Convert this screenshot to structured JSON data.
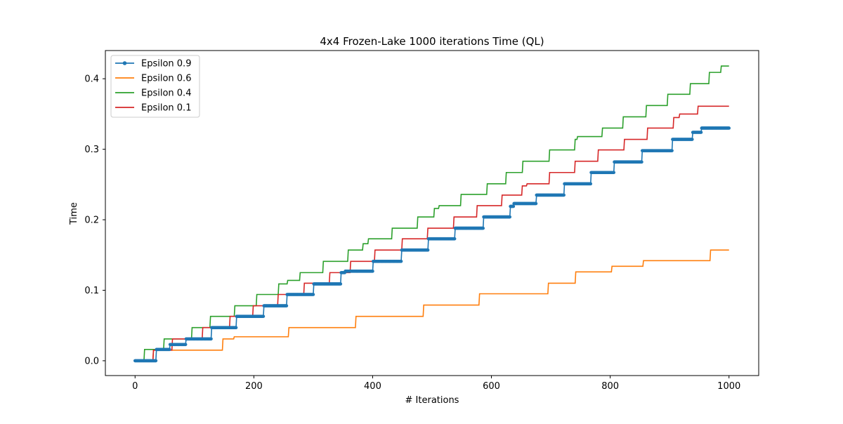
{
  "chart_data": {
    "type": "line",
    "title": "4x4 Frozen-Lake 1000 iterations  Time (QL)",
    "xlabel": "# Iterations",
    "ylabel": "Time",
    "xlim": [
      -50,
      1050
    ],
    "ylim": [
      -0.021,
      0.44
    ],
    "xticks": [
      0,
      200,
      400,
      600,
      800,
      1000
    ],
    "xtick_labels": [
      "0",
      "200",
      "400",
      "600",
      "800",
      "1000"
    ],
    "yticks": [
      0.0,
      0.1,
      0.2,
      0.3,
      0.4
    ],
    "ytick_labels": [
      "0.0",
      "0.1",
      "0.2",
      "0.3",
      "0.4"
    ],
    "grid": false,
    "legend_position": "top-left",
    "series": [
      {
        "name": "Epsilon 0.9",
        "color": "#1f77b4",
        "marker": "circle",
        "step_points": [
          [
            0,
            0
          ],
          [
            35,
            0
          ],
          [
            36,
            0.016
          ],
          [
            58,
            0.016
          ],
          [
            59,
            0.023
          ],
          [
            85,
            0.023
          ],
          [
            86,
            0.031
          ],
          [
            128,
            0.031
          ],
          [
            129,
            0.047
          ],
          [
            170,
            0.047
          ],
          [
            171,
            0.063
          ],
          [
            216,
            0.063
          ],
          [
            217,
            0.078
          ],
          [
            255,
            0.078
          ],
          [
            256,
            0.094
          ],
          [
            300,
            0.094
          ],
          [
            301,
            0.109
          ],
          [
            346,
            0.109
          ],
          [
            347,
            0.125
          ],
          [
            353,
            0.125
          ],
          [
            354,
            0.127
          ],
          [
            400,
            0.127
          ],
          [
            401,
            0.141
          ],
          [
            448,
            0.141
          ],
          [
            449,
            0.157
          ],
          [
            493,
            0.157
          ],
          [
            494,
            0.173
          ],
          [
            538,
            0.173
          ],
          [
            539,
            0.188
          ],
          [
            586,
            0.188
          ],
          [
            587,
            0.204
          ],
          [
            631,
            0.204
          ],
          [
            632,
            0.219
          ],
          [
            637,
            0.219
          ],
          [
            638,
            0.223
          ],
          [
            675,
            0.223
          ],
          [
            676,
            0.235
          ],
          [
            722,
            0.235
          ],
          [
            723,
            0.251
          ],
          [
            767,
            0.251
          ],
          [
            768,
            0.267
          ],
          [
            806,
            0.267
          ],
          [
            807,
            0.282
          ],
          [
            853,
            0.282
          ],
          [
            854,
            0.298
          ],
          [
            904,
            0.298
          ],
          [
            905,
            0.314
          ],
          [
            938,
            0.314
          ],
          [
            939,
            0.324
          ],
          [
            953,
            0.324
          ],
          [
            954,
            0.33
          ],
          [
            1000,
            0.33
          ]
        ]
      },
      {
        "name": "Epsilon 0.6",
        "color": "#ff7f0e",
        "marker": "none",
        "step_points": [
          [
            0,
            0
          ],
          [
            30,
            0
          ],
          [
            31,
            0.015
          ],
          [
            147,
            0.015
          ],
          [
            148,
            0.031
          ],
          [
            166,
            0.031
          ],
          [
            167,
            0.034
          ],
          [
            258,
            0.034
          ],
          [
            259,
            0.047
          ],
          [
            371,
            0.047
          ],
          [
            372,
            0.063
          ],
          [
            485,
            0.063
          ],
          [
            486,
            0.079
          ],
          [
            579,
            0.079
          ],
          [
            580,
            0.095
          ],
          [
            695,
            0.095
          ],
          [
            696,
            0.11
          ],
          [
            741,
            0.11
          ],
          [
            742,
            0.126
          ],
          [
            802,
            0.126
          ],
          [
            803,
            0.134
          ],
          [
            855,
            0.134
          ],
          [
            856,
            0.142
          ],
          [
            968,
            0.142
          ],
          [
            969,
            0.157
          ],
          [
            1000,
            0.157
          ]
        ]
      },
      {
        "name": "Epsilon 0.4",
        "color": "#2ca02c",
        "marker": "none",
        "step_points": [
          [
            0,
            0
          ],
          [
            15,
            0
          ],
          [
            16,
            0.016
          ],
          [
            48,
            0.016
          ],
          [
            49,
            0.031
          ],
          [
            95,
            0.031
          ],
          [
            96,
            0.047
          ],
          [
            126,
            0.047
          ],
          [
            127,
            0.063
          ],
          [
            167,
            0.063
          ],
          [
            168,
            0.078
          ],
          [
            204,
            0.078
          ],
          [
            205,
            0.094
          ],
          [
            241,
            0.094
          ],
          [
            242,
            0.109
          ],
          [
            256,
            0.109
          ],
          [
            257,
            0.114
          ],
          [
            277,
            0.114
          ],
          [
            278,
            0.125
          ],
          [
            316,
            0.125
          ],
          [
            317,
            0.141
          ],
          [
            358,
            0.141
          ],
          [
            359,
            0.157
          ],
          [
            383,
            0.157
          ],
          [
            384,
            0.166
          ],
          [
            392,
            0.166
          ],
          [
            393,
            0.173
          ],
          [
            432,
            0.173
          ],
          [
            433,
            0.188
          ],
          [
            475,
            0.188
          ],
          [
            476,
            0.204
          ],
          [
            503,
            0.204
          ],
          [
            504,
            0.216
          ],
          [
            511,
            0.216
          ],
          [
            512,
            0.22
          ],
          [
            548,
            0.22
          ],
          [
            549,
            0.236
          ],
          [
            592,
            0.236
          ],
          [
            593,
            0.251
          ],
          [
            624,
            0.251
          ],
          [
            625,
            0.267
          ],
          [
            652,
            0.267
          ],
          [
            653,
            0.283
          ],
          [
            697,
            0.283
          ],
          [
            698,
            0.299
          ],
          [
            740,
            0.299
          ],
          [
            741,
            0.314
          ],
          [
            744,
            0.314
          ],
          [
            745,
            0.318
          ],
          [
            786,
            0.318
          ],
          [
            787,
            0.33
          ],
          [
            821,
            0.33
          ],
          [
            822,
            0.346
          ],
          [
            860,
            0.346
          ],
          [
            861,
            0.362
          ],
          [
            896,
            0.362
          ],
          [
            897,
            0.378
          ],
          [
            934,
            0.378
          ],
          [
            935,
            0.393
          ],
          [
            966,
            0.393
          ],
          [
            967,
            0.409
          ],
          [
            986,
            0.409
          ],
          [
            987,
            0.418
          ],
          [
            1000,
            0.418
          ]
        ]
      },
      {
        "name": "Epsilon 0.1",
        "color": "#d62728",
        "marker": "none",
        "step_points": [
          [
            0,
            0
          ],
          [
            30,
            0
          ],
          [
            31,
            0.015
          ],
          [
            62,
            0.015
          ],
          [
            63,
            0.031
          ],
          [
            113,
            0.031
          ],
          [
            114,
            0.047
          ],
          [
            159,
            0.047
          ],
          [
            160,
            0.063
          ],
          [
            198,
            0.063
          ],
          [
            199,
            0.078
          ],
          [
            240,
            0.078
          ],
          [
            241,
            0.094
          ],
          [
            284,
            0.094
          ],
          [
            285,
            0.11
          ],
          [
            327,
            0.11
          ],
          [
            328,
            0.125
          ],
          [
            362,
            0.125
          ],
          [
            363,
            0.141
          ],
          [
            403,
            0.141
          ],
          [
            404,
            0.157
          ],
          [
            449,
            0.157
          ],
          [
            450,
            0.173
          ],
          [
            492,
            0.173
          ],
          [
            493,
            0.188
          ],
          [
            536,
            0.188
          ],
          [
            537,
            0.204
          ],
          [
            575,
            0.204
          ],
          [
            576,
            0.22
          ],
          [
            617,
            0.22
          ],
          [
            618,
            0.235
          ],
          [
            651,
            0.235
          ],
          [
            652,
            0.248
          ],
          [
            659,
            0.248
          ],
          [
            660,
            0.251
          ],
          [
            697,
            0.251
          ],
          [
            698,
            0.267
          ],
          [
            740,
            0.267
          ],
          [
            741,
            0.283
          ],
          [
            779,
            0.283
          ],
          [
            780,
            0.299
          ],
          [
            823,
            0.299
          ],
          [
            824,
            0.314
          ],
          [
            862,
            0.314
          ],
          [
            863,
            0.33
          ],
          [
            906,
            0.33
          ],
          [
            907,
            0.345
          ],
          [
            916,
            0.345
          ],
          [
            917,
            0.35
          ],
          [
            947,
            0.35
          ],
          [
            948,
            0.361
          ],
          [
            1000,
            0.361
          ]
        ]
      }
    ]
  }
}
